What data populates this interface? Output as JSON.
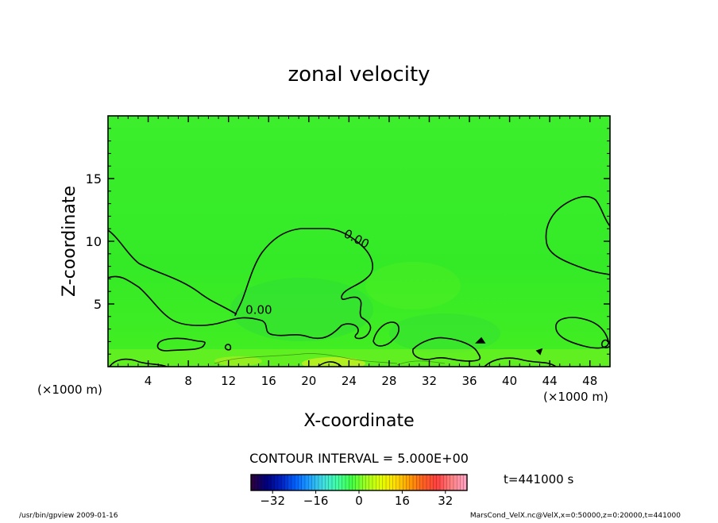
{
  "chart_data": {
    "type": "contour",
    "title": "zonal velocity",
    "xlabel": "X-coordinate",
    "ylabel": "Z-coordinate",
    "x_unit_label": "(×1000 m)",
    "y_unit_label": "(×1000 m)",
    "xlim": [
      0,
      50
    ],
    "ylim": [
      0,
      20
    ],
    "x_ticks": [
      4,
      8,
      12,
      16,
      20,
      24,
      28,
      32,
      36,
      40,
      44,
      48
    ],
    "y_ticks": [
      5,
      10,
      15
    ],
    "contour_labels": [
      {
        "text": "0.00",
        "x": 23.4,
        "z": 10.4
      },
      {
        "text": "0.00",
        "x": 13.7,
        "z": 4.2
      }
    ],
    "contour_interval_text": "CONTOUR INTERVAL = 5.000E+00",
    "colorbar": {
      "min": -40,
      "max": 40,
      "ticks": [
        -32,
        -16,
        0,
        16,
        32
      ],
      "tick_labels": [
        "−32",
        "−16",
        "0",
        "16",
        "32"
      ],
      "colors": [
        "#2a0040",
        "#000080",
        "#0020c0",
        "#0060ff",
        "#20a0ff",
        "#40e0e0",
        "#40ffa0",
        "#40ff40",
        "#a0ff20",
        "#e0ff00",
        "#ffe000",
        "#ffa000",
        "#ff6020",
        "#ff4040",
        "#ff8080",
        "#ffa0c0"
      ]
    },
    "time_label": "t=441000 s",
    "field_color": "#33ee22"
  },
  "footer": {
    "left": "/usr/bin/gpview  2009-01-16",
    "right": "MarsCond_VelX.nc@VelX,x=0:50000,z=0:20000,t=441000"
  }
}
